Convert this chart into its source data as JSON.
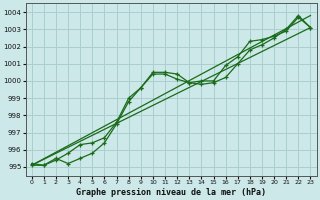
{
  "title": "Graphe pression niveau de la mer (hPa)",
  "bg_color": "#cde8e8",
  "grid_color": "#aacfcf",
  "line_color": "#1a6b1a",
  "xlim": [
    -0.5,
    23.5
  ],
  "ylim": [
    994.5,
    1004.5
  ],
  "yticks": [
    995,
    996,
    997,
    998,
    999,
    1000,
    1001,
    1002,
    1003,
    1004
  ],
  "xticks": [
    0,
    1,
    2,
    3,
    4,
    5,
    6,
    7,
    8,
    9,
    10,
    11,
    12,
    13,
    14,
    15,
    16,
    17,
    18,
    19,
    20,
    21,
    22,
    23
  ],
  "series1_x": [
    0,
    1,
    2,
    3,
    4,
    5,
    6,
    7,
    8,
    9,
    10,
    11,
    12,
    13,
    14,
    15,
    16,
    17,
    18,
    19,
    20,
    21,
    22,
    23
  ],
  "series1_y": [
    995.2,
    995.1,
    995.5,
    995.2,
    995.5,
    995.8,
    996.4,
    997.5,
    998.8,
    999.6,
    1000.5,
    1000.5,
    1000.4,
    999.9,
    999.8,
    999.9,
    1000.2,
    1001.0,
    1001.8,
    1002.1,
    1002.5,
    1003.0,
    1003.8,
    1003.1
  ],
  "series2_x": [
    0,
    1,
    2,
    3,
    4,
    5,
    6,
    7,
    8,
    9,
    10,
    11,
    12,
    13,
    14,
    15,
    16,
    17,
    18,
    19,
    20,
    21,
    22,
    23
  ],
  "series2_y": [
    995.1,
    995.1,
    995.4,
    995.8,
    996.3,
    996.4,
    996.7,
    997.6,
    999.0,
    999.6,
    1000.4,
    1000.4,
    1000.1,
    999.9,
    1000.0,
    1000.0,
    1000.9,
    1001.4,
    1002.3,
    1002.4,
    1002.6,
    1002.9,
    1003.7,
    1003.1
  ],
  "series3_x": [
    0,
    23
  ],
  "series3_y": [
    995.1,
    1003.8
  ],
  "series4_x": [
    0,
    23
  ],
  "series4_y": [
    995.1,
    1003.1
  ]
}
